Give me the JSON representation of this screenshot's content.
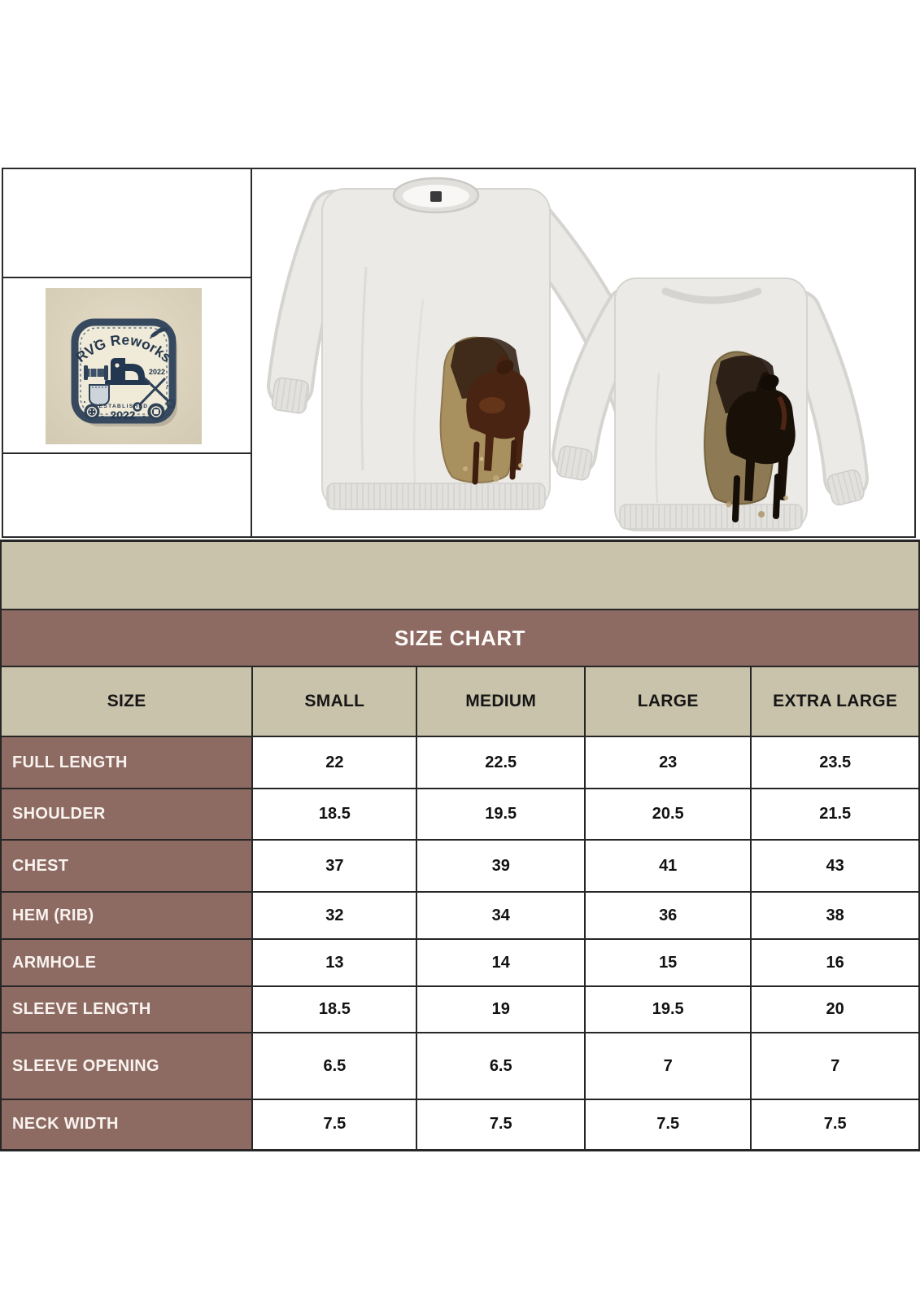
{
  "logo": {
    "brand_arc": "RVG Reworks",
    "year_badge": "2022",
    "established_label": "ESTABLISHED",
    "established_year": "2022"
  },
  "icons": {
    "logo_patch": "rvg-reworks-patch-icon",
    "sewing_machine": "sewing-machine-icon",
    "scissors": "scissors-icon",
    "thread_spool": "thread-spool-icon",
    "pocket": "pocket-icon",
    "buttons": "button-icon",
    "leaf_sprig": "leaf-icon",
    "horse_applique": "horse-applique"
  },
  "photos": {
    "front_view": "sweatshirt-front-with-horse-applique",
    "back_view": "sweatshirt-back-with-horse-applique"
  },
  "size_chart": {
    "title": "SIZE CHART",
    "columns": [
      "SIZE",
      "SMALL",
      "MEDIUM",
      "LARGE",
      "EXTRA LARGE"
    ],
    "rows": [
      {
        "label": "FULL LENGTH",
        "values": [
          "22",
          "22.5",
          "23",
          "23.5"
        ]
      },
      {
        "label": "SHOULDER",
        "values": [
          "18.5",
          "19.5",
          "20.5",
          "21.5"
        ]
      },
      {
        "label": "CHEST",
        "values": [
          "37",
          "39",
          "41",
          "43"
        ]
      },
      {
        "label": "HEM (RIB)",
        "values": [
          "32",
          "34",
          "36",
          "38"
        ]
      },
      {
        "label": "ARMHOLE",
        "values": [
          "13",
          "14",
          "15",
          "16"
        ]
      },
      {
        "label": "SLEEVE LENGTH",
        "values": [
          "18.5",
          "19",
          "19.5",
          "20"
        ]
      },
      {
        "label": "SLEEVE OPENING",
        "values": [
          "6.5",
          "6.5",
          "7",
          "7"
        ]
      },
      {
        "label": "NECK WIDTH",
        "values": [
          "7.5",
          "7.5",
          "7.5",
          "7.5"
        ]
      }
    ]
  },
  "colors": {
    "band_beige": "#c9c3ab",
    "band_mauve": "#8d6a62",
    "table_border": "#262626",
    "label_text": "#f8f3ef",
    "value_text": "#121212",
    "patch_navy": "#36495f",
    "patch_cream": "#f0ead9",
    "photo_beige": "#ddd4bf",
    "sweatshirt_gray": "#ebeae7",
    "horse_brown": "#4a2412"
  }
}
